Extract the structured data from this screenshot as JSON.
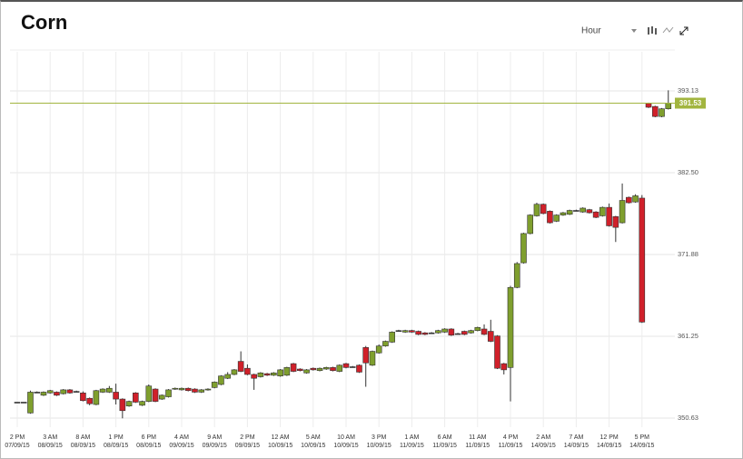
{
  "toolbar": {
    "interval": "Hour"
  },
  "chart_data": {
    "type": "candlestick",
    "title": "Corn",
    "categories": [
      [
        "2 PM",
        "07/09/15"
      ],
      null,
      null,
      null,
      null,
      [
        "3 AM",
        "08/09/15"
      ],
      null,
      null,
      null,
      null,
      [
        "8 AM",
        "08/09/15"
      ],
      null,
      null,
      null,
      null,
      [
        "1 PM",
        "08/09/15"
      ],
      null,
      null,
      null,
      null,
      [
        "6 PM",
        "08/09/15"
      ],
      null,
      null,
      null,
      null,
      [
        "4 AM",
        "09/09/15"
      ],
      null,
      null,
      null,
      null,
      [
        "9 AM",
        "09/09/15"
      ],
      null,
      null,
      null,
      null,
      [
        "2 PM",
        "09/09/15"
      ],
      null,
      null,
      null,
      null,
      [
        "12 AM",
        "10/09/15"
      ],
      null,
      null,
      null,
      null,
      [
        "5 AM",
        "10/09/15"
      ],
      null,
      null,
      null,
      null,
      [
        "10 AM",
        "10/09/15"
      ],
      null,
      null,
      null,
      null,
      [
        "3 PM",
        "10/09/15"
      ],
      null,
      null,
      null,
      null,
      [
        "1 AM",
        "11/09/15"
      ],
      null,
      null,
      null,
      null,
      [
        "6 AM",
        "11/09/15"
      ],
      null,
      null,
      null,
      null,
      [
        "11 AM",
        "11/09/15"
      ],
      null,
      null,
      null,
      null,
      [
        "4 PM",
        "11/09/15"
      ],
      null,
      null,
      null,
      null,
      [
        "2 AM",
        "14/09/15"
      ],
      null,
      null,
      null,
      null,
      [
        "7 AM",
        "14/09/15"
      ],
      null,
      null,
      null,
      null,
      [
        "12 PM",
        "14/09/15"
      ],
      null,
      null,
      null,
      null,
      [
        "5 PM",
        "14/09/15"
      ],
      null,
      null,
      null,
      null
    ],
    "open": [
      352.7,
      352.7,
      351.3,
      354.0,
      353.6,
      353.9,
      354.0,
      353.8,
      354.3,
      354.1,
      353.9,
      353.2,
      352.4,
      354.0,
      354.0,
      354.0,
      353.1,
      352.2,
      353.9,
      352.3,
      352.8,
      354.4,
      353.1,
      353.4,
      354.4,
      354.3,
      354.5,
      354.4,
      354.0,
      354.3,
      354.6,
      355.0,
      355.8,
      356.3,
      358.0,
      357.1,
      356.3,
      356.0,
      356.4,
      356.2,
      356.1,
      356.2,
      357.7,
      357.0,
      356.5,
      357.1,
      356.8,
      357.0,
      357.2,
      356.7,
      357.7,
      357.3,
      357.5,
      359.8,
      357.5,
      359.1,
      360.0,
      360.5,
      362.0,
      361.8,
      362.0,
      361.9,
      361.7,
      361.7,
      361.7,
      361.8,
      362.2,
      361.6,
      361.9,
      361.7,
      362.0,
      362.2,
      361.9,
      361.3,
      357.7,
      357.2,
      367.6,
      370.8,
      374.6,
      376.9,
      378.4,
      377.5,
      376.2,
      377.0,
      377.1,
      377.6,
      377.4,
      377.7,
      377.4,
      376.9,
      378.0,
      376.8,
      376.0,
      379.3,
      378.7,
      379.2,
      391.5,
      391.1,
      389.8,
      390.8
    ],
    "high": [
      352.7,
      352.7,
      354.2,
      354.1,
      354.1,
      354.3,
      354.1,
      354.4,
      354.4,
      354.2,
      354.1,
      353.3,
      354.3,
      354.5,
      354.8,
      355.1,
      353.2,
      352.9,
      354.0,
      352.9,
      355.0,
      354.5,
      353.7,
      354.4,
      354.6,
      354.6,
      354.6,
      354.5,
      354.4,
      354.5,
      355.4,
      356.2,
      356.6,
      357.0,
      359.3,
      357.6,
      356.4,
      356.6,
      356.5,
      356.6,
      357.0,
      357.3,
      357.8,
      357.1,
      357.0,
      357.2,
      357.2,
      357.3,
      357.3,
      357.6,
      357.8,
      357.4,
      357.6,
      360.0,
      359.4,
      360.2,
      360.7,
      361.9,
      362.1,
      362.1,
      362.1,
      362.0,
      361.8,
      361.8,
      362.1,
      362.3,
      362.3,
      361.7,
      362.0,
      362.1,
      362.5,
      362.8,
      363.4,
      361.4,
      357.8,
      367.8,
      370.9,
      374.7,
      377.1,
      378.6,
      378.5,
      377.6,
      377.1,
      377.4,
      377.7,
      377.7,
      378.0,
      377.8,
      377.5,
      378.1,
      378.5,
      376.9,
      381.1,
      379.4,
      379.7,
      379.6,
      391.6,
      391.2,
      390.9,
      393.2
    ],
    "low": [
      352.7,
      352.7,
      351.2,
      353.9,
      353.5,
      353.8,
      353.5,
      353.7,
      353.8,
      354.0,
      352.8,
      352.3,
      352.3,
      353.9,
      353.9,
      352.4,
      350.6,
      352.1,
      352.6,
      352.2,
      352.7,
      352.7,
      353.0,
      353.3,
      354.3,
      354.2,
      354.1,
      353.9,
      353.9,
      354.2,
      354.5,
      354.9,
      355.7,
      356.2,
      356.6,
      356.2,
      354.3,
      355.9,
      356.1,
      356.1,
      356.0,
      356.1,
      356.6,
      356.7,
      356.4,
      356.8,
      356.7,
      356.9,
      356.7,
      356.6,
      357.1,
      357.2,
      356.5,
      354.7,
      357.4,
      359.0,
      359.9,
      360.4,
      361.9,
      361.7,
      361.7,
      361.4,
      361.4,
      361.6,
      361.6,
      361.7,
      361.3,
      361.5,
      361.4,
      361.6,
      361.9,
      361.4,
      360.5,
      357.0,
      356.3,
      352.8,
      367.5,
      370.7,
      374.5,
      376.8,
      377.1,
      375.9,
      376.1,
      376.9,
      377.0,
      377.5,
      377.3,
      377.2,
      376.6,
      376.8,
      375.5,
      373.5,
      375.9,
      378.5,
      378.6,
      363.0,
      390.9,
      389.7,
      389.7,
      390.7
    ],
    "close": [
      352.7,
      352.7,
      354.0,
      354.0,
      354.0,
      354.2,
      353.6,
      354.3,
      353.9,
      354.1,
      352.9,
      352.5,
      354.2,
      354.4,
      354.5,
      353.1,
      351.6,
      352.8,
      352.7,
      352.8,
      354.8,
      352.8,
      353.6,
      354.3,
      354.5,
      354.5,
      354.2,
      354.0,
      354.3,
      354.4,
      355.3,
      356.1,
      356.3,
      356.9,
      356.7,
      356.3,
      355.8,
      356.5,
      356.2,
      356.5,
      356.9,
      357.2,
      356.7,
      356.8,
      356.9,
      356.9,
      357.1,
      357.2,
      356.8,
      357.5,
      357.2,
      357.3,
      356.6,
      357.8,
      359.3,
      360.0,
      360.6,
      361.8,
      362.0,
      362.0,
      361.8,
      361.5,
      361.5,
      361.7,
      362.0,
      362.2,
      361.4,
      361.6,
      361.5,
      362.0,
      362.4,
      361.5,
      360.6,
      357.1,
      356.9,
      367.6,
      370.7,
      374.6,
      377.0,
      378.4,
      377.2,
      376.0,
      377.0,
      377.3,
      377.6,
      377.6,
      377.9,
      377.3,
      376.7,
      378.0,
      375.6,
      375.4,
      378.9,
      378.6,
      379.5,
      363.1,
      391.0,
      389.8,
      390.8,
      391.53
    ],
    "up_color": "#7f9f2e",
    "down_color": "#d0202a",
    "flat_color": "#333333",
    "last_price": 391.53,
    "last_price_color": "#a2b53f",
    "ylim": [
      349.45,
      398.2
    ],
    "yticks": [
      350.63,
      361.25,
      371.88,
      {
        "value": 382.5,
        "label": "382.50"
      },
      393.13
    ],
    "grid": true
  }
}
